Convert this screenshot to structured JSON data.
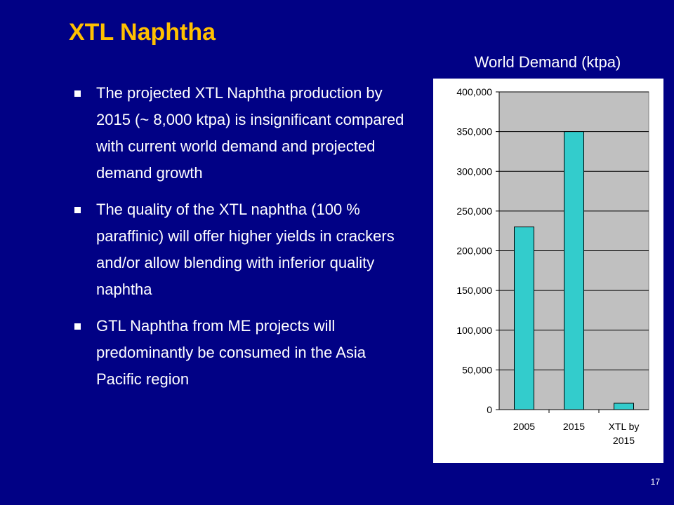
{
  "slide": {
    "title": "XTL Naphtha",
    "page_number": "17",
    "bullets": [
      "The projected XTL Naphtha production by 2015 (~ 8,000 ktpa) is insignificant compared with current world demand and projected demand growth",
      "The quality of the XTL naphtha (100 % paraffinic) will offer higher yields in crackers and/or allow blending with inferior quality naphtha",
      "GTL Naphtha from ME projects will predominantly be consumed in the Asia Pacific region"
    ],
    "colors": {
      "background": "#010185",
      "title": "#FFC000",
      "text": "#FFFFFF"
    }
  },
  "chart_data": {
    "type": "bar",
    "title": "World Demand (ktpa)",
    "categories": [
      "2005",
      "2015",
      "XTL by 2015"
    ],
    "category_label_lines": [
      [
        "2005"
      ],
      [
        "2015"
      ],
      [
        "XTL by",
        "2015"
      ]
    ],
    "values": [
      230000,
      350000,
      8000
    ],
    "ylim": [
      0,
      400000
    ],
    "y_ticks": [
      0,
      50000,
      100000,
      150000,
      200000,
      250000,
      300000,
      350000,
      400000
    ],
    "y_tick_labels": [
      "0",
      "50,000",
      "100,000",
      "150,000",
      "200,000",
      "250,000",
      "300,000",
      "350,000",
      "400,000"
    ],
    "xlabel": "",
    "ylabel": "",
    "grid": true,
    "legend": "none",
    "bar_color": "#33CCCC",
    "plot_background": "#C0C0C0"
  }
}
